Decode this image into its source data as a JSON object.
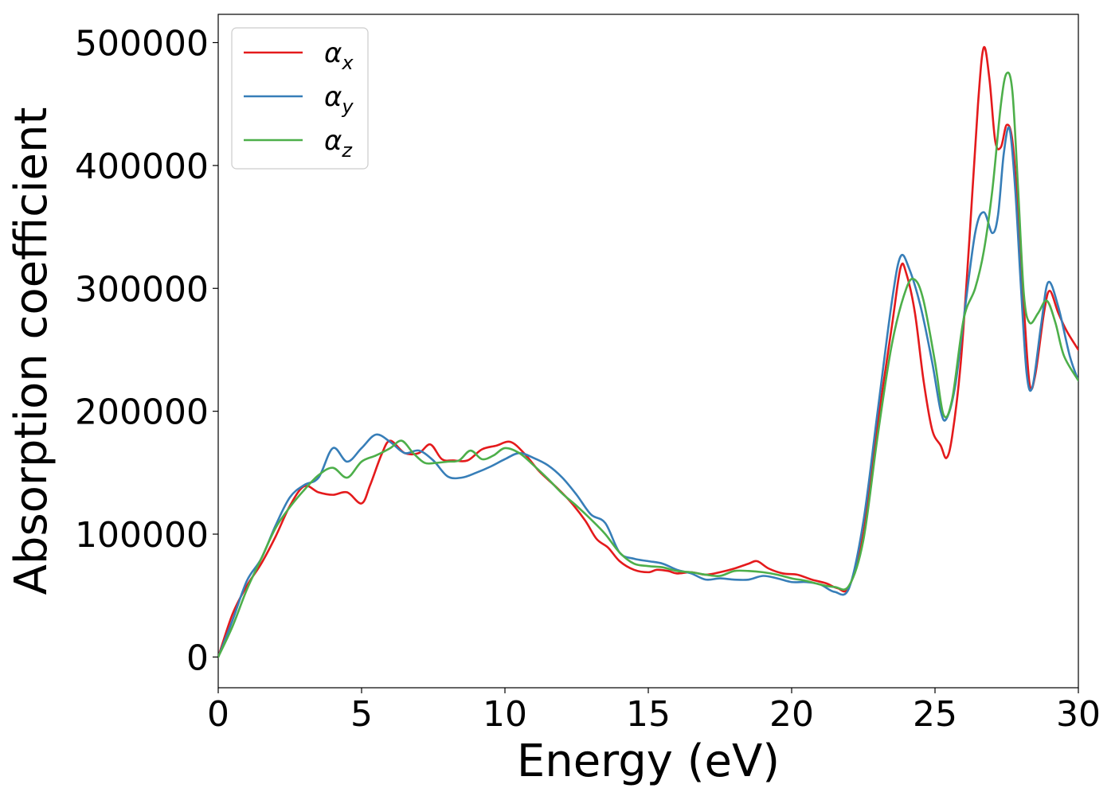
{
  "chart_data": {
    "type": "line",
    "xlabel": "Energy (eV)",
    "ylabel": "Absorption coefficient",
    "xlim": [
      0,
      30
    ],
    "ylim": [
      -25000,
      523000
    ],
    "xticks": [
      0,
      5,
      10,
      15,
      20,
      25,
      30
    ],
    "yticks": [
      0,
      100000,
      200000,
      300000,
      400000,
      500000
    ],
    "grid": false,
    "legend": {
      "position": "top-left"
    },
    "series": [
      {
        "name": "α",
        "subscript": "x",
        "color": "#e41a1c",
        "points": [
          [
            0,
            0
          ],
          [
            0.5,
            35000
          ],
          [
            1,
            58000
          ],
          [
            1.5,
            76000
          ],
          [
            2,
            98000
          ],
          [
            2.5,
            123000
          ],
          [
            3,
            139000
          ],
          [
            3.5,
            134000
          ],
          [
            4,
            132000
          ],
          [
            4.5,
            134000
          ],
          [
            5,
            125000
          ],
          [
            5.3,
            140000
          ],
          [
            5.7,
            165000
          ],
          [
            6,
            176000
          ],
          [
            6.5,
            166000
          ],
          [
            7,
            166000
          ],
          [
            7.4,
            173000
          ],
          [
            7.8,
            161000
          ],
          [
            8.2,
            160000
          ],
          [
            8.7,
            160000
          ],
          [
            9.2,
            169000
          ],
          [
            9.7,
            172000
          ],
          [
            10.2,
            175000
          ],
          [
            10.7,
            165000
          ],
          [
            11.2,
            151000
          ],
          [
            11.8,
            138000
          ],
          [
            12.3,
            126000
          ],
          [
            12.8,
            111000
          ],
          [
            13.2,
            96000
          ],
          [
            13.6,
            89000
          ],
          [
            14,
            78000
          ],
          [
            14.5,
            71000
          ],
          [
            15,
            69000
          ],
          [
            15.3,
            71000
          ],
          [
            15.7,
            70000
          ],
          [
            16,
            68000
          ],
          [
            16.5,
            69000
          ],
          [
            17,
            67000
          ],
          [
            17.5,
            69000
          ],
          [
            18,
            72000
          ],
          [
            18.5,
            76000
          ],
          [
            18.8,
            78000
          ],
          [
            19.2,
            72000
          ],
          [
            19.7,
            68000
          ],
          [
            20.2,
            67000
          ],
          [
            20.7,
            63000
          ],
          [
            21.2,
            60000
          ],
          [
            21.6,
            56000
          ],
          [
            22,
            57000
          ],
          [
            22.5,
            100000
          ],
          [
            23,
            190000
          ],
          [
            23.5,
            270000
          ],
          [
            23.8,
            317000
          ],
          [
            24,
            312000
          ],
          [
            24.3,
            280000
          ],
          [
            24.6,
            225000
          ],
          [
            24.9,
            185000
          ],
          [
            25.2,
            172000
          ],
          [
            25.4,
            162000
          ],
          [
            25.6,
            180000
          ],
          [
            25.9,
            240000
          ],
          [
            26.2,
            340000
          ],
          [
            26.5,
            450000
          ],
          [
            26.7,
            496000
          ],
          [
            26.9,
            470000
          ],
          [
            27.1,
            420000
          ],
          [
            27.3,
            415000
          ],
          [
            27.5,
            433000
          ],
          [
            27.7,
            420000
          ],
          [
            27.9,
            360000
          ],
          [
            28.1,
            285000
          ],
          [
            28.3,
            222000
          ],
          [
            28.5,
            230000
          ],
          [
            28.8,
            280000
          ],
          [
            29,
            298000
          ],
          [
            29.3,
            280000
          ],
          [
            29.6,
            265000
          ],
          [
            30,
            250000
          ]
        ]
      },
      {
        "name": "α",
        "subscript": "y",
        "color": "#377eb8",
        "points": [
          [
            0,
            0
          ],
          [
            0.5,
            30000
          ],
          [
            1,
            62000
          ],
          [
            1.5,
            80000
          ],
          [
            2,
            107000
          ],
          [
            2.5,
            130000
          ],
          [
            3,
            140000
          ],
          [
            3.5,
            146000
          ],
          [
            4,
            170000
          ],
          [
            4.5,
            159000
          ],
          [
            5,
            170000
          ],
          [
            5.5,
            181000
          ],
          [
            6,
            175000
          ],
          [
            6.5,
            166000
          ],
          [
            7,
            168000
          ],
          [
            7.5,
            160000
          ],
          [
            8,
            147000
          ],
          [
            8.5,
            146000
          ],
          [
            9,
            150000
          ],
          [
            9.5,
            155000
          ],
          [
            10,
            161000
          ],
          [
            10.5,
            166000
          ],
          [
            11,
            162000
          ],
          [
            11.5,
            156000
          ],
          [
            12,
            146000
          ],
          [
            12.5,
            132000
          ],
          [
            13,
            116000
          ],
          [
            13.5,
            109000
          ],
          [
            14,
            85000
          ],
          [
            14.5,
            80000
          ],
          [
            15,
            78000
          ],
          [
            15.5,
            76000
          ],
          [
            16,
            71000
          ],
          [
            16.5,
            68000
          ],
          [
            17,
            63000
          ],
          [
            17.5,
            64000
          ],
          [
            18,
            63000
          ],
          [
            18.5,
            63000
          ],
          [
            19,
            66000
          ],
          [
            19.5,
            64000
          ],
          [
            20,
            61000
          ],
          [
            20.5,
            61000
          ],
          [
            21,
            59000
          ],
          [
            21.5,
            53000
          ],
          [
            22,
            56000
          ],
          [
            22.5,
            110000
          ],
          [
            23,
            200000
          ],
          [
            23.5,
            290000
          ],
          [
            23.8,
            326000
          ],
          [
            24.1,
            316000
          ],
          [
            24.5,
            285000
          ],
          [
            24.9,
            240000
          ],
          [
            25.2,
            200000
          ],
          [
            25.4,
            194000
          ],
          [
            25.7,
            220000
          ],
          [
            26,
            275000
          ],
          [
            26.4,
            345000
          ],
          [
            26.7,
            362000
          ],
          [
            27,
            345000
          ],
          [
            27.2,
            360000
          ],
          [
            27.4,
            410000
          ],
          [
            27.6,
            430000
          ],
          [
            27.8,
            380000
          ],
          [
            28,
            300000
          ],
          [
            28.2,
            230000
          ],
          [
            28.4,
            220000
          ],
          [
            28.7,
            270000
          ],
          [
            28.95,
            305000
          ],
          [
            29.3,
            285000
          ],
          [
            29.7,
            245000
          ],
          [
            30,
            225000
          ]
        ]
      },
      {
        "name": "α",
        "subscript": "z",
        "color": "#4daf4a",
        "points": [
          [
            0,
            0
          ],
          [
            0.5,
            25000
          ],
          [
            1,
            55000
          ],
          [
            1.5,
            80000
          ],
          [
            2,
            105000
          ],
          [
            2.5,
            122000
          ],
          [
            3,
            136000
          ],
          [
            3.5,
            148000
          ],
          [
            4,
            154000
          ],
          [
            4.5,
            146000
          ],
          [
            5,
            159000
          ],
          [
            5.5,
            164000
          ],
          [
            6,
            170000
          ],
          [
            6.4,
            176000
          ],
          [
            6.8,
            166000
          ],
          [
            7.2,
            158000
          ],
          [
            7.6,
            158000
          ],
          [
            8,
            159000
          ],
          [
            8.4,
            160000
          ],
          [
            8.8,
            168000
          ],
          [
            9.2,
            161000
          ],
          [
            9.6,
            164000
          ],
          [
            10,
            170000
          ],
          [
            10.5,
            166000
          ],
          [
            11,
            156000
          ],
          [
            11.5,
            145000
          ],
          [
            12,
            133000
          ],
          [
            12.5,
            123000
          ],
          [
            13,
            112000
          ],
          [
            13.5,
            100000
          ],
          [
            14,
            85000
          ],
          [
            14.5,
            76000
          ],
          [
            15,
            74000
          ],
          [
            15.5,
            73000
          ],
          [
            16,
            70000
          ],
          [
            16.5,
            69000
          ],
          [
            17,
            67000
          ],
          [
            17.5,
            66000
          ],
          [
            18,
            70000
          ],
          [
            18.5,
            70000
          ],
          [
            19,
            69000
          ],
          [
            19.5,
            67000
          ],
          [
            20,
            64000
          ],
          [
            20.5,
            62000
          ],
          [
            21,
            59000
          ],
          [
            21.5,
            57000
          ],
          [
            22,
            58000
          ],
          [
            22.5,
            95000
          ],
          [
            23,
            180000
          ],
          [
            23.5,
            255000
          ],
          [
            24,
            300000
          ],
          [
            24.3,
            307000
          ],
          [
            24.6,
            290000
          ],
          [
            25,
            240000
          ],
          [
            25.3,
            197000
          ],
          [
            25.6,
            210000
          ],
          [
            26,
            275000
          ],
          [
            26.4,
            300000
          ],
          [
            26.7,
            330000
          ],
          [
            27,
            380000
          ],
          [
            27.3,
            450000
          ],
          [
            27.5,
            475000
          ],
          [
            27.7,
            460000
          ],
          [
            27.9,
            380000
          ],
          [
            28.1,
            295000
          ],
          [
            28.3,
            272000
          ],
          [
            28.6,
            280000
          ],
          [
            28.9,
            290000
          ],
          [
            29.2,
            272000
          ],
          [
            29.5,
            245000
          ],
          [
            30,
            225000
          ]
        ]
      }
    ]
  }
}
